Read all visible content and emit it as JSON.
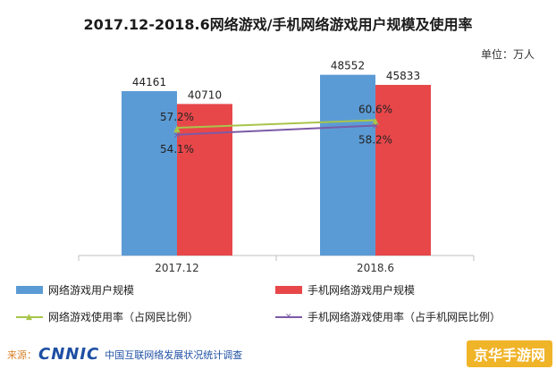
{
  "chart_data": {
    "type": "bar",
    "title": "2017.12-2018.6网络游戏/手机网络游戏用户规模及使用率",
    "unit": "单位：万人",
    "categories": [
      "2017.12",
      "2018.6"
    ],
    "series": [
      {
        "name": "网络游戏用户规模",
        "values": [
          44161,
          48552
        ],
        "color": "#5b9bd5"
      },
      {
        "name": "手机网络游戏用户规模",
        "values": [
          40710,
          45833
        ],
        "color": "#e8474a"
      }
    ],
    "rate_series": [
      {
        "name": "网络游戏使用率（占网民比例）",
        "values": [
          57.2,
          60.6
        ],
        "labels": [
          "57.2%",
          "60.6%"
        ],
        "color": "#a8c54a",
        "marker": "▲"
      },
      {
        "name": "手机网络游戏使用率（占手机网民比例）",
        "values": [
          54.1,
          58.2
        ],
        "labels": [
          "54.1%",
          "58.2%"
        ],
        "color": "#7b5aa6",
        "marker": "✕"
      }
    ],
    "ylim": [
      0,
      60000
    ],
    "rate_ylim": [
      0,
      100
    ],
    "legend_position": "bottom"
  },
  "source": {
    "prefix": "来源：",
    "logo": "CNNIC",
    "text": "中国互联网络发展状况统计调查"
  },
  "watermark": "京华手游网"
}
